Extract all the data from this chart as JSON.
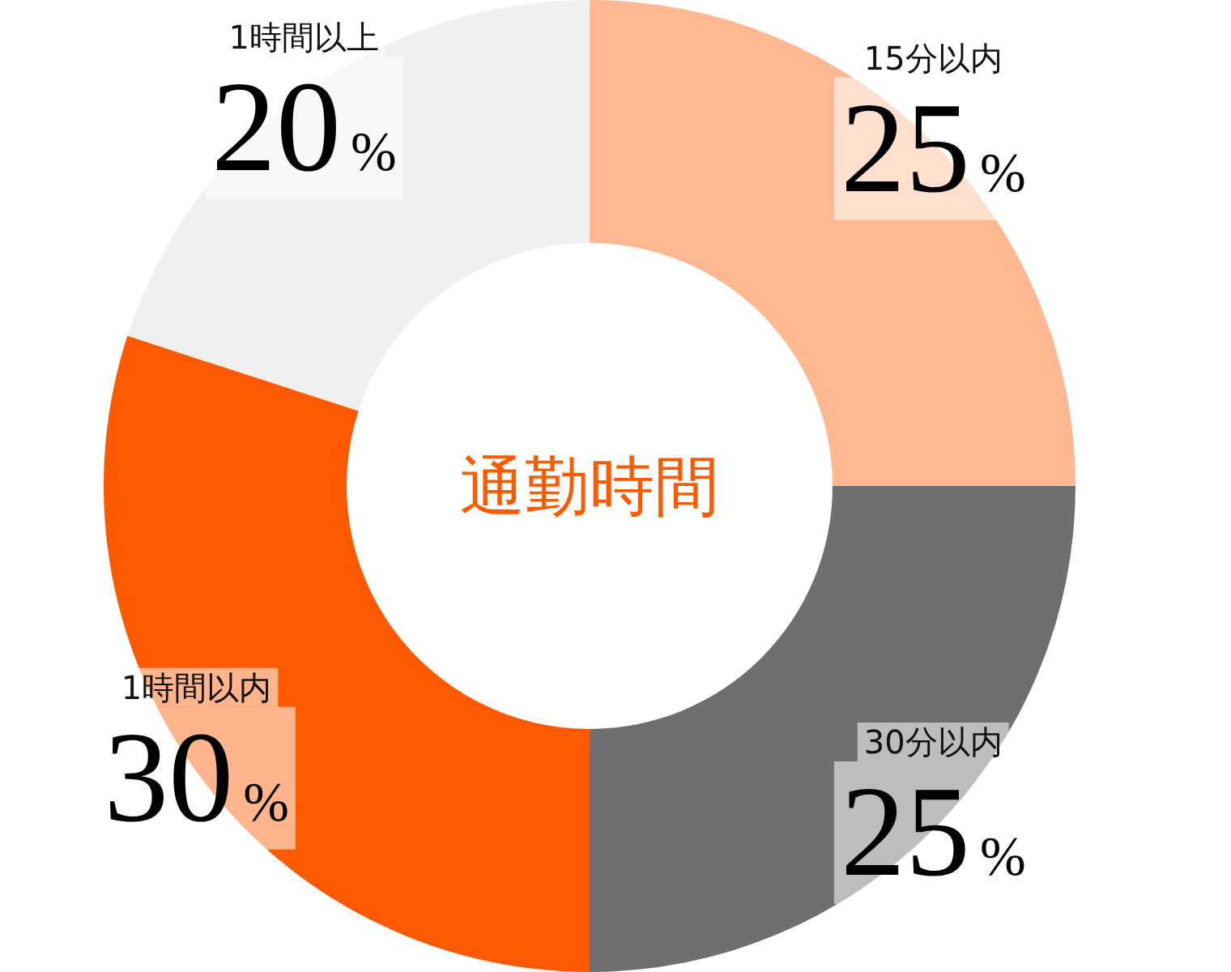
{
  "chart_data": {
    "type": "donut",
    "title": "通勤時間",
    "categories": [
      "15分以内",
      "30分以内",
      "1時間以内",
      "1時間以上"
    ],
    "values": [
      25,
      25,
      30,
      20
    ],
    "colors": [
      "#ffb891",
      "#6f6e70",
      "#ff5a00",
      "#f0f0f0"
    ],
    "value_labels": [
      "25%",
      "25%",
      "30%",
      "20%"
    ]
  }
}
